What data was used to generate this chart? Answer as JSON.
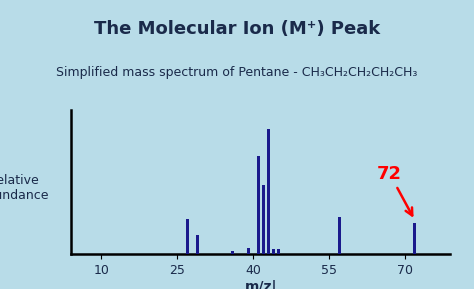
{
  "title": "The Molecular Ion (M⁺) Peak",
  "subtitle_plain": "Simplified mass spectrum of Pentane - ",
  "subtitle_formula": "CH₃CH₂CH₂CH₂CH₃",
  "xlabel": "m/z|",
  "ylabel": "Relative\nAbundance",
  "background_color": "#b8dce8",
  "bar_color": "#1a1a8c",
  "title_color": "#1a2a4a",
  "subtitle_color": "#1a2a4a",
  "peaks": [
    {
      "mz": 27,
      "rel": 0.28
    },
    {
      "mz": 29,
      "rel": 0.15
    },
    {
      "mz": 36,
      "rel": 0.03
    },
    {
      "mz": 39,
      "rel": 0.05
    },
    {
      "mz": 41,
      "rel": 0.78
    },
    {
      "mz": 42,
      "rel": 0.55
    },
    {
      "mz": 43,
      "rel": 1.0
    },
    {
      "mz": 44,
      "rel": 0.04
    },
    {
      "mz": 45,
      "rel": 0.04
    },
    {
      "mz": 57,
      "rel": 0.3
    },
    {
      "mz": 72,
      "rel": 0.25
    }
  ],
  "annotation_mz": 72,
  "annotation_label": "72",
  "annotation_color": "red",
  "xlim": [
    4,
    79
  ],
  "ylim": [
    0,
    1.15
  ],
  "xticks": [
    10,
    25,
    40,
    55,
    70
  ],
  "tick_labels": [
    "10",
    "25",
    "40",
    "55",
    "70"
  ]
}
